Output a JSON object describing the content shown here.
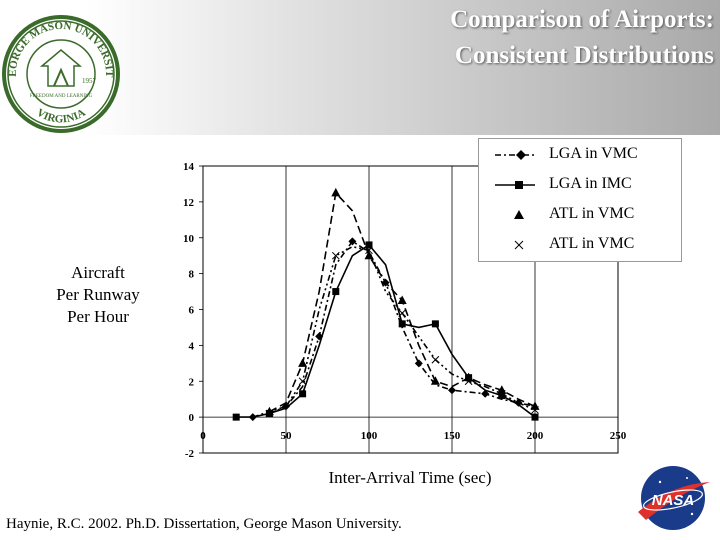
{
  "title": {
    "line1": "Comparison of Airports:",
    "line2": "Consistent Distributions"
  },
  "seal": {
    "text_top": "GEORGE MASON UNIVERSITY",
    "text_bottom": "VIRGINIA",
    "year": "1957",
    "motto": "FREEDOM AND LEARNING"
  },
  "y_axis_label": [
    "Aircraft",
    "Per Runway",
    "Per Hour"
  ],
  "x_axis_label": "Inter-Arrival Time (sec)",
  "citation": "Haynie, R.C. 2002.  Ph.D. Dissertation, George Mason University.",
  "logo_text": "NASA",
  "chart_data": {
    "type": "line",
    "xlim": [
      0,
      250
    ],
    "ylim": [
      -2,
      14
    ],
    "x_ticks": [
      0,
      50,
      100,
      150,
      200,
      250
    ],
    "x_tick_labels": [
      "0",
      "50",
      "100",
      "150",
      "200",
      "250"
    ],
    "y_ticks": [
      -2,
      0,
      2,
      4,
      6,
      8,
      10,
      12,
      14
    ],
    "y_tick_labels": [
      "-2",
      "0",
      "2",
      "4",
      "6",
      "8",
      "10",
      "12",
      "14"
    ],
    "grid": "vertical",
    "legend_placement": "top-right",
    "series": [
      {
        "name": "LGA in VMC",
        "style": "dash-dot",
        "marker": "diamond",
        "color": "#000000",
        "x": [
          30,
          40,
          50,
          60,
          70,
          80,
          90,
          100,
          110,
          120,
          130,
          140,
          150,
          160,
          170,
          180,
          190,
          200
        ],
        "y": [
          0,
          0.3,
          0.6,
          1.7,
          4.5,
          8.5,
          9.8,
          9.2,
          7.5,
          5.0,
          3.0,
          1.8,
          1.5,
          1.4,
          1.3,
          1.0,
          0.8,
          0.6
        ]
      },
      {
        "name": "LGA in IMC",
        "style": "solid",
        "marker": "square",
        "color": "#000000",
        "x": [
          20,
          30,
          40,
          50,
          60,
          70,
          80,
          90,
          100,
          110,
          120,
          130,
          140,
          150,
          160,
          170,
          180,
          190,
          200
        ],
        "y": [
          0,
          0,
          0.2,
          0.5,
          1.3,
          4.0,
          7.0,
          9.0,
          9.6,
          8.5,
          5.2,
          5.0,
          5.2,
          3.5,
          2.2,
          1.5,
          1.2,
          0.7,
          0
        ]
      },
      {
        "name": "ATL in VMC",
        "style": "dashed",
        "marker": "triangle",
        "color": "#000000",
        "x": [
          40,
          50,
          60,
          70,
          80,
          90,
          100,
          110,
          120,
          130,
          140,
          150,
          160,
          170,
          180,
          190,
          200
        ],
        "y": [
          0.3,
          0.8,
          3.0,
          7.0,
          12.5,
          11.5,
          9.0,
          7.5,
          6.5,
          4.0,
          2.0,
          1.7,
          2.2,
          1.8,
          1.5,
          1.0,
          0.6
        ]
      },
      {
        "name": "ATL in VMC",
        "style": "dash-dot-dot",
        "marker": "x",
        "color": "#000000",
        "x": [
          40,
          50,
          60,
          70,
          80,
          90,
          100,
          110,
          120,
          130,
          140,
          150,
          160,
          170,
          180,
          190,
          200
        ],
        "y": [
          0.2,
          0.6,
          2.0,
          6.0,
          9.0,
          9.5,
          9.3,
          7.0,
          5.8,
          4.5,
          3.2,
          2.4,
          2.0,
          1.7,
          1.3,
          0.8,
          0.4
        ]
      }
    ]
  }
}
